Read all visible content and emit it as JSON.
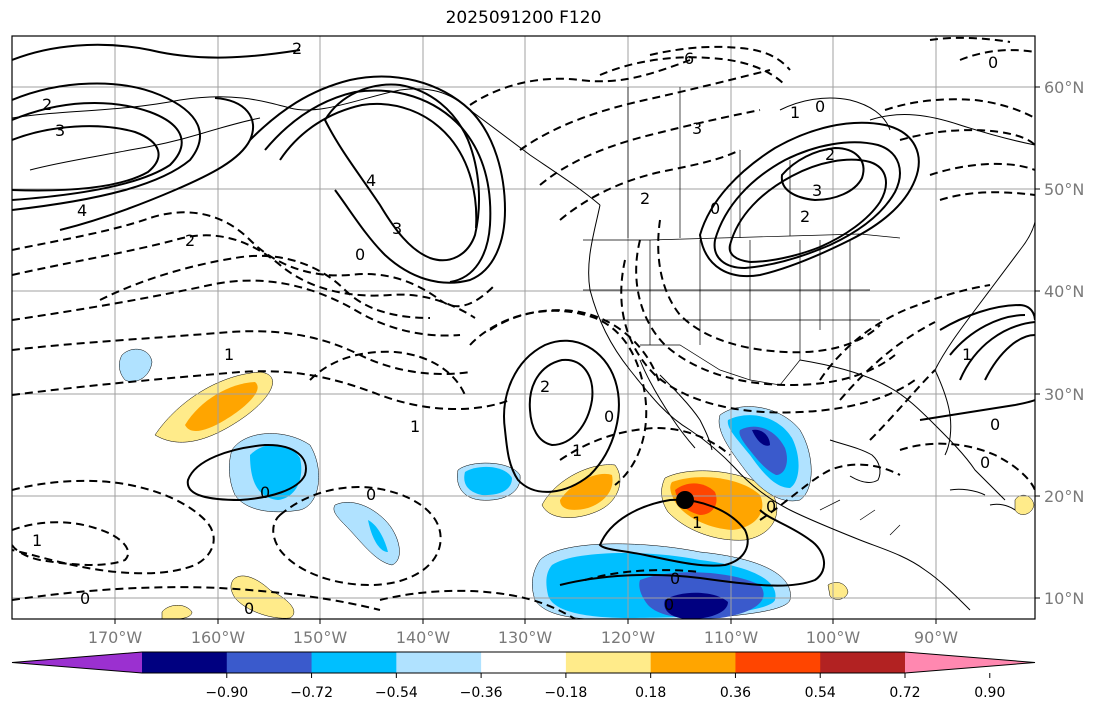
{
  "title": "2025091200 F120",
  "lon_labels": [
    "170°W",
    "160°W",
    "150°W",
    "140°W",
    "130°W",
    "120°W",
    "110°W",
    "100°W",
    "90°W"
  ],
  "lat_labels": [
    "60°N",
    "50°N",
    "40°N",
    "30°N",
    "20°N",
    "10°N"
  ],
  "colorbar": {
    "tick_labels": [
      "−0.90",
      "−0.72",
      "−0.54",
      "−0.36",
      "−0.18",
      "0.18",
      "0.36",
      "0.54",
      "0.72",
      "0.90"
    ],
    "colors": [
      "#9b30d0",
      "#000080",
      "#3a5acc",
      "#00bfff",
      "#b0e2ff",
      "#ffffff",
      "#ffeb8a",
      "#ffa500",
      "#ff4500",
      "#b22222",
      "#ff88b0"
    ]
  },
  "contour_labels": {
    "c1": "2",
    "c2": "3",
    "c3": "4",
    "c4": "4",
    "c5": "3",
    "c6": "2",
    "c7": "6",
    "c8": "3",
    "c9": "2",
    "c10": "1",
    "c11": "0",
    "c12": "2",
    "c13": "3",
    "c14": "2",
    "c15": "0",
    "c16": "2",
    "c17": "0",
    "c18": "1",
    "c19": "1",
    "c20": "2",
    "c21": "0",
    "c22": "1",
    "c23": "0",
    "c24": "0",
    "c25": "1",
    "c26": "0",
    "c27": "0",
    "c28": "0",
    "c29": "0",
    "c30": "0",
    "c31": "0",
    "c32": "1",
    "c33": "0",
    "c34": "0",
    "c35": "1"
  },
  "colors": {
    "grid": "#a0a0a0",
    "land": "#000000",
    "frame": "#000000"
  }
}
